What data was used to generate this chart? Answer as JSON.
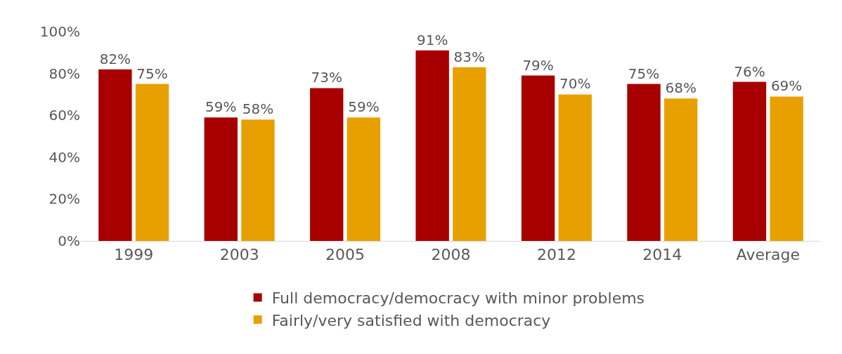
{
  "chart_data": {
    "type": "bar",
    "categories": [
      "1999",
      "2003",
      "2005",
      "2008",
      "2012",
      "2014",
      "Average"
    ],
    "series": [
      {
        "name": "Full democracy/democracy with minor problems",
        "color": "#a80000",
        "values": [
          82,
          59,
          73,
          91,
          79,
          75,
          76
        ],
        "value_labels": [
          "82%",
          "59%",
          "73%",
          "91%",
          "79%",
          "75%",
          "76%"
        ]
      },
      {
        "name": "Fairly/very satisfied with democracy",
        "color": "#e8a000",
        "values": [
          75,
          58,
          59,
          83,
          70,
          68,
          69
        ],
        "value_labels": [
          "75%",
          "58%",
          "59%",
          "83%",
          "70%",
          "68%",
          "69%"
        ]
      }
    ],
    "ylim": [
      0,
      100
    ],
    "yticks": [
      {
        "value": 0,
        "label": "0%"
      },
      {
        "value": 20,
        "label": "20%"
      },
      {
        "value": 40,
        "label": "40%"
      },
      {
        "value": 60,
        "label": "60%"
      },
      {
        "value": 80,
        "label": "80%"
      },
      {
        "value": 100,
        "label": "100%"
      }
    ],
    "grid": false,
    "legend": "bottom"
  }
}
